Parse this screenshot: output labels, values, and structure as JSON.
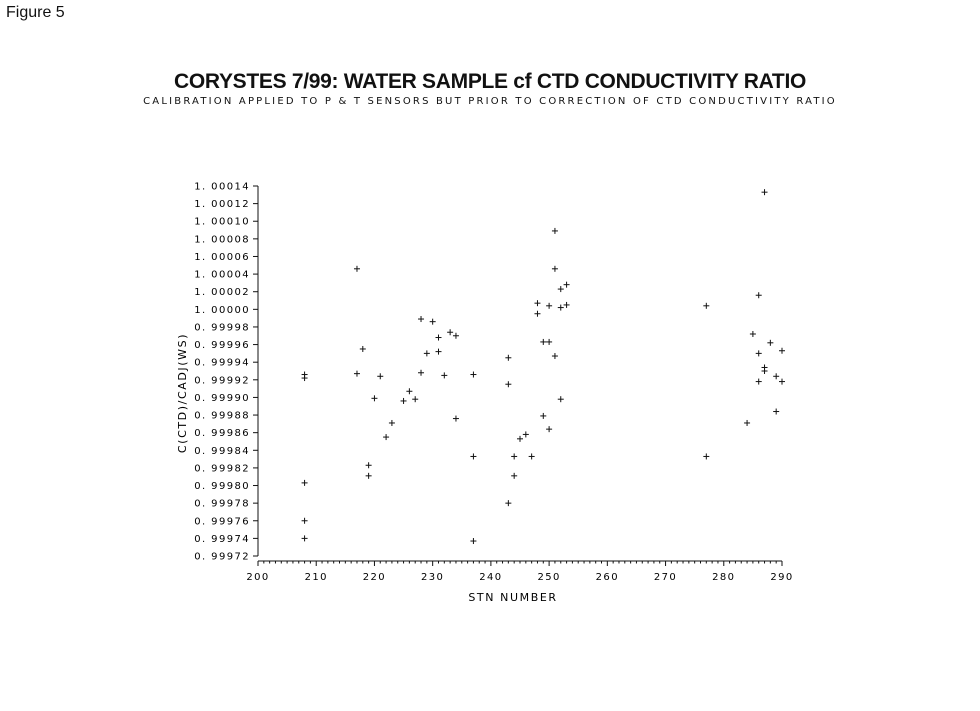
{
  "figure_label": "Figure 5",
  "chart_data": {
    "type": "scatter",
    "title": "CORYSTES 7/99: WATER SAMPLE cf CTD CONDUCTIVITY RATIO",
    "subtitle": "CALIBRATION APPLIED TO P & T SENSORS BUT PRIOR TO CORRECTION OF CTD CONDUCTIVITY RATIO",
    "xlabel": "STN NUMBER",
    "ylabel": "C(CTD)/CADJ(WS)",
    "xlim": [
      200,
      290
    ],
    "ylim": [
      0.99972,
      1.00014
    ],
    "x_ticks": [
      200,
      210,
      220,
      230,
      240,
      250,
      260,
      270,
      280,
      290
    ],
    "y_ticks": [
      "0.99972",
      "0.99974",
      "0.99976",
      "0.99978",
      "0.99980",
      "0.99982",
      "0.99984",
      "0.99986",
      "0.99988",
      "0.99990",
      "0.99992",
      "0.99994",
      "0.99996",
      "0.99998",
      "1.00000",
      "1.00002",
      "1.00004",
      "1.00006",
      "1.00008",
      "1.00010",
      "1.00012",
      "1.00014"
    ],
    "grid": false,
    "marker": "+",
    "points": [
      [
        208,
        0.999926
      ],
      [
        208,
        0.999922
      ],
      [
        208,
        0.999803
      ],
      [
        208,
        0.99976
      ],
      [
        208,
        0.99974
      ],
      [
        217,
        1.000046
      ],
      [
        217,
        0.999927
      ],
      [
        218,
        0.999955
      ],
      [
        219,
        0.999823
      ],
      [
        219,
        0.999811
      ],
      [
        220,
        0.999899
      ],
      [
        221,
        0.999924
      ],
      [
        222,
        0.999855
      ],
      [
        223,
        0.999871
      ],
      [
        225,
        0.999896
      ],
      [
        226,
        0.999907
      ],
      [
        227,
        0.999898
      ],
      [
        228,
        0.999989
      ],
      [
        228,
        0.999928
      ],
      [
        229,
        0.99995
      ],
      [
        230,
        0.999986
      ],
      [
        231,
        0.999968
      ],
      [
        231,
        0.999952
      ],
      [
        232,
        0.999925
      ],
      [
        233,
        0.999974
      ],
      [
        234,
        0.99997
      ],
      [
        234,
        0.999876
      ],
      [
        237,
        0.999926
      ],
      [
        237,
        0.999833
      ],
      [
        237,
        0.999737
      ],
      [
        243,
        0.999945
      ],
      [
        243,
        0.999915
      ],
      [
        243,
        0.99978
      ],
      [
        244,
        0.999833
      ],
      [
        244,
        0.999811
      ],
      [
        245,
        0.999853
      ],
      [
        246,
        0.999858
      ],
      [
        247,
        0.999833
      ],
      [
        248,
        1.000007
      ],
      [
        248,
        0.999995
      ],
      [
        249,
        0.999963
      ],
      [
        249,
        0.999879
      ],
      [
        250,
        1.000004
      ],
      [
        250,
        0.999963
      ],
      [
        250,
        0.999864
      ],
      [
        251,
        1.000089
      ],
      [
        251,
        1.000046
      ],
      [
        251,
        0.999947
      ],
      [
        252,
        1.000023
      ],
      [
        252,
        1.000002
      ],
      [
        252,
        0.999898
      ],
      [
        253,
        1.000028
      ],
      [
        253,
        1.000005
      ],
      [
        277,
        1.000004
      ],
      [
        277,
        0.999833
      ],
      [
        284,
        0.999871
      ],
      [
        285,
        0.999972
      ],
      [
        286,
        1.000016
      ],
      [
        286,
        0.99995
      ],
      [
        286,
        0.999918
      ],
      [
        287,
        1.000133
      ],
      [
        287,
        0.999934
      ],
      [
        287,
        0.99993
      ],
      [
        288,
        0.999962
      ],
      [
        289,
        0.999924
      ],
      [
        289,
        0.999884
      ],
      [
        290,
        0.999953
      ],
      [
        290,
        0.999918
      ]
    ]
  }
}
